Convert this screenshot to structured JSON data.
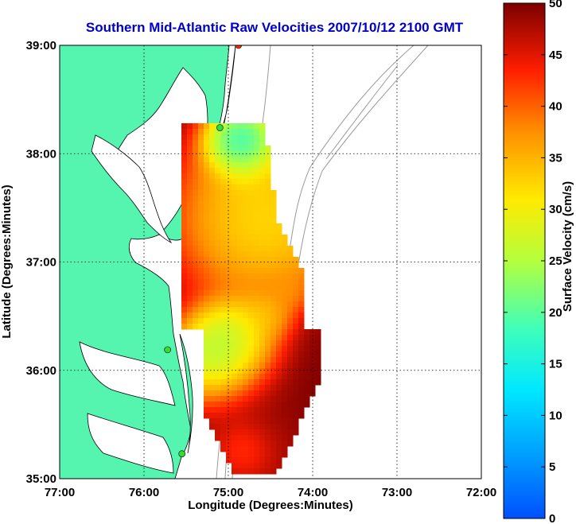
{
  "title": "Southern Mid-Atlantic Raw Velocities 2007/10/12 2100 GMT",
  "xlabel": "Longitude (Degrees:Minutes)",
  "ylabel": "Latitude (Degrees:Minutes)",
  "colorbar": {
    "label": "Surface Velocity (cm/s)",
    "range": [
      0,
      50
    ],
    "ticks": [
      "0",
      "5",
      "10",
      "15",
      "20",
      "25",
      "30",
      "35",
      "40",
      "45",
      "50"
    ]
  },
  "map": {
    "lon_range": [
      -77,
      -72
    ],
    "lat_range": [
      35,
      39
    ],
    "x_ticks": [
      "77:00",
      "76:00",
      "75:00",
      "74:00",
      "73:00",
      "72:00"
    ],
    "y_ticks": [
      "39:00",
      "38:00",
      "37:00",
      "36:00",
      "35:00"
    ],
    "grid": "dotted",
    "land_color": "#55f5b0",
    "contour_color": "#999999",
    "stations": [
      {
        "lon": -74.88,
        "lat": 39.0,
        "color": "#ff2a00"
      },
      {
        "lon": -75.1,
        "lat": 38.24,
        "color": "#33dd33"
      },
      {
        "lon": -75.72,
        "lat": 36.19,
        "color": "#33dd33"
      },
      {
        "lon": -75.55,
        "lat": 35.23,
        "color": "#33dd33"
      }
    ]
  }
}
